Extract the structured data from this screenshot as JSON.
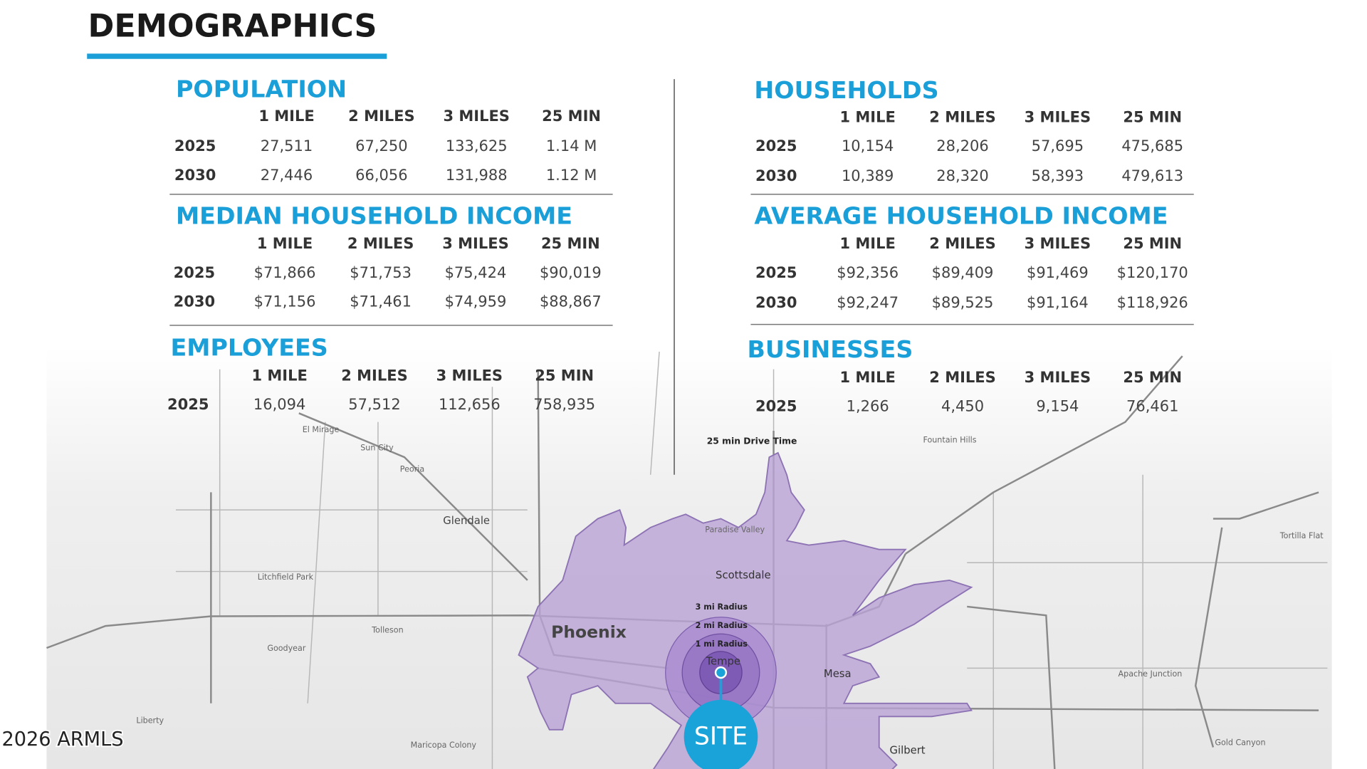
{
  "header": {
    "title": "DEMOGRAPHICS"
  },
  "sections": [
    {
      "title": "POPULATION",
      "columns": [
        "1 MILE",
        "2 MILES",
        "3 MILES",
        "25 MIN"
      ],
      "rows": [
        {
          "year": "2025",
          "values": [
            "27,511",
            "67,250",
            "133,625",
            "1.14 M"
          ]
        },
        {
          "year": "2030",
          "values": [
            "27,446",
            "66,056",
            "131,988",
            "1.12 M"
          ]
        }
      ]
    },
    {
      "title": "MEDIAN HOUSEHOLD INCOME",
      "columns": [
        "1 MILE",
        "2 MILES",
        "3 MILES",
        "25 MIN"
      ],
      "rows": [
        {
          "year": "2025",
          "values": [
            "$71,866",
            "$71,753",
            "$75,424",
            "$90,019"
          ]
        },
        {
          "year": "2030",
          "values": [
            "$71,156",
            "$71,461",
            "$74,959",
            "$88,867"
          ]
        }
      ]
    },
    {
      "title": "EMPLOYEES",
      "columns": [
        "1 MILE",
        "2 MILES",
        "3 MILES",
        "25 MIN"
      ],
      "rows": [
        {
          "year": "2025",
          "values": [
            "16,094",
            "57,512",
            "112,656",
            "758,935"
          ]
        }
      ]
    },
    {
      "title": "HOUSEHOLDS",
      "columns": [
        "1 MILE",
        "2 MILES",
        "3 MILES",
        "25 MIN"
      ],
      "rows": [
        {
          "year": "2025",
          "values": [
            "10,154",
            "28,206",
            "57,695",
            "475,685"
          ]
        },
        {
          "year": "2030",
          "values": [
            "10,389",
            "28,320",
            "58,393",
            "479,613"
          ]
        }
      ]
    },
    {
      "title": "AVERAGE HOUSEHOLD INCOME",
      "columns": [
        "1 MILE",
        "2 MILES",
        "3 MILES",
        "25 MIN"
      ],
      "rows": [
        {
          "year": "2025",
          "values": [
            "$92,356",
            "$89,409",
            "$91,469",
            "$120,170"
          ]
        },
        {
          "year": "2030",
          "values": [
            "$92,247",
            "$89,525",
            "$91,164",
            "$118,926"
          ]
        }
      ]
    },
    {
      "title": "BUSINESSES",
      "columns": [
        "1 MILE",
        "2 MILES",
        "3 MILES",
        "25 MIN"
      ],
      "rows": [
        {
          "year": "2025",
          "values": [
            "1,266",
            "4,450",
            "9,154",
            "76,461"
          ]
        }
      ]
    }
  ],
  "map": {
    "labels": [
      "Phoenix",
      "Scottsdale",
      "Mesa",
      "Tempe",
      "Glendale",
      "Peoria",
      "Gilbert",
      "Goodyear",
      "Tolleson",
      "Litchfield Park",
      "Liberty",
      "Maricopa Colony",
      "Fountain Hills",
      "Apache Junction",
      "Gold Canyon",
      "Tortilla Flat",
      "El Mirage",
      "Sun City",
      "Paradise Valley",
      "25 min Drive Time",
      "3 mi Radius",
      "2 mi Radius",
      "1 mi Radius",
      "SITE"
    ]
  },
  "watermark": "2026 ARMLS"
}
